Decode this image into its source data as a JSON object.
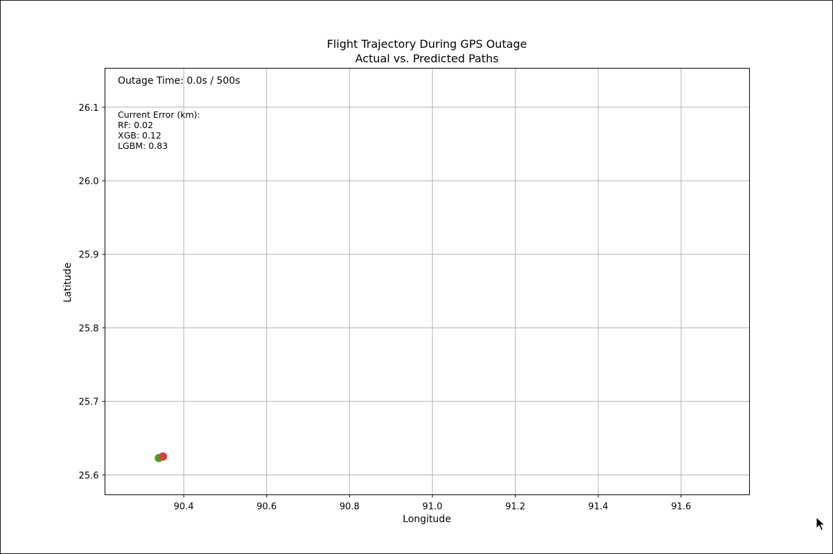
{
  "chart_data": {
    "type": "scatter",
    "title": "Flight Trajectory During GPS Outage",
    "subtitle": "Actual vs. Predicted Paths",
    "xlabel": "Longitude",
    "ylabel": "Latitude",
    "xlim": [
      90.21,
      91.765
    ],
    "ylim": [
      25.573,
      26.153
    ],
    "xticks": [
      "90.4",
      "90.6",
      "90.8",
      "91.0",
      "91.2",
      "91.4",
      "91.6"
    ],
    "yticks": [
      "25.6",
      "25.7",
      "25.8",
      "25.9",
      "26.0",
      "26.1"
    ],
    "grid": true,
    "series": [
      {
        "color": "#4aa02c",
        "points": [
          {
            "x": 90.34,
            "y": 25.623
          }
        ]
      },
      {
        "color": "#d1453b",
        "points": [
          {
            "x": 90.35,
            "y": 25.625
          }
        ]
      }
    ]
  },
  "annotations": {
    "outage_time": "Outage Time: 0.0s / 500s",
    "error_title": "Current Error (km):",
    "error_lines": [
      "RF: 0.02",
      "XGB: 0.12",
      "LGBM: 0.83"
    ]
  },
  "colors": {
    "grid": "#b0b0b0",
    "axes": "#000000",
    "text": "#000000"
  },
  "icons": {
    "cursor": "mouse-pointer-icon"
  }
}
